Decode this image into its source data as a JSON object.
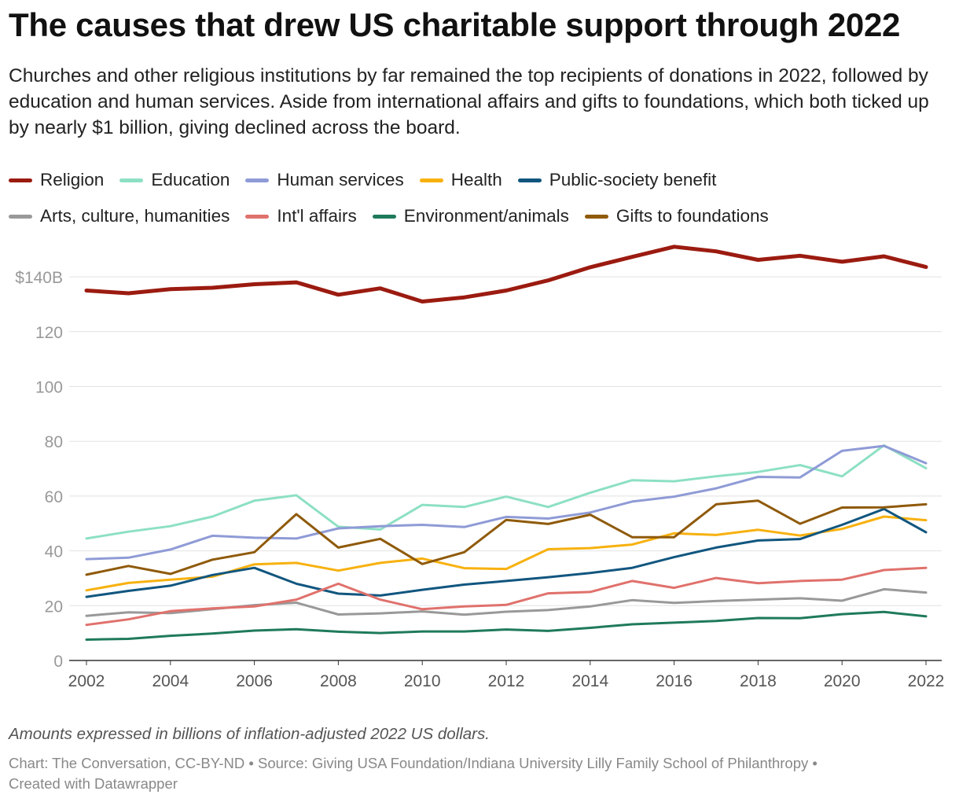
{
  "title": "The causes that drew US charitable support through 2022",
  "subtitle": "Churches and other religious institutions by far remained the top recipients of donations in 2022, followed by education and human services. Aside from international affairs and gifts to foundations, which both ticked up by nearly $1 billion, giving declined across the board.",
  "note": "Amounts expressed in billions of inflation-adjusted 2022 US dollars.",
  "footer": {
    "line1": "Chart: The Conversation, CC-BY-ND • Source: Giving USA Foundation/Indiana University Lilly Family School of Philanthropy •",
    "line2": "Created with Datawrapper"
  },
  "chart_data": {
    "type": "line",
    "x": [
      2002,
      2003,
      2004,
      2005,
      2006,
      2007,
      2008,
      2009,
      2010,
      2011,
      2012,
      2013,
      2014,
      2015,
      2016,
      2017,
      2018,
      2019,
      2020,
      2021,
      2022
    ],
    "xticks": [
      "2002",
      "2004",
      "2006",
      "2008",
      "2010",
      "2012",
      "2014",
      "2016",
      "2018",
      "2020",
      "2022"
    ],
    "yticks": [
      "0",
      "20",
      "40",
      "60",
      "80",
      "100",
      "120",
      "$140B"
    ],
    "ylim": [
      0,
      150
    ],
    "xlim": [
      2002,
      2022
    ],
    "grid": true,
    "legend_position": "top",
    "series": [
      {
        "name": "Religion",
        "color": "#9b1b10",
        "width": 5,
        "values": [
          135.0,
          134.0,
          135.5,
          136.0,
          137.3,
          138.0,
          133.5,
          135.8,
          131.0,
          132.5,
          135.0,
          138.7,
          143.5,
          147.3,
          151.0,
          149.3,
          146.2,
          147.7,
          145.5,
          147.5,
          143.6
        ]
      },
      {
        "name": "Education",
        "color": "#8de0c3",
        "width": 3,
        "values": [
          44.5,
          47.0,
          49.0,
          52.5,
          58.3,
          60.3,
          48.8,
          47.8,
          56.8,
          56.0,
          59.8,
          56.0,
          61.2,
          65.8,
          65.4,
          67.2,
          68.8,
          71.3,
          67.2,
          78.5,
          70.2
        ]
      },
      {
        "name": "Human services",
        "color": "#8f9bd6",
        "width": 3,
        "values": [
          37.0,
          37.5,
          40.5,
          45.5,
          44.8,
          44.5,
          48.2,
          49.0,
          49.5,
          48.7,
          52.4,
          51.8,
          54.0,
          58.0,
          59.8,
          62.8,
          67.0,
          66.8,
          76.5,
          78.3,
          72.0
        ]
      },
      {
        "name": "Health",
        "color": "#f7b10f",
        "width": 3,
        "values": [
          25.6,
          28.3,
          29.5,
          30.6,
          35.1,
          35.6,
          32.8,
          35.6,
          37.2,
          33.7,
          33.4,
          40.6,
          41.0,
          42.3,
          46.4,
          45.8,
          47.7,
          45.6,
          48.0,
          52.5,
          51.2
        ]
      },
      {
        "name": "Public-society benefit",
        "color": "#11567f",
        "width": 3,
        "values": [
          23.2,
          25.4,
          27.3,
          31.2,
          33.8,
          28.0,
          24.4,
          23.7,
          25.8,
          27.7,
          29.0,
          30.4,
          31.9,
          33.8,
          37.7,
          41.2,
          43.8,
          44.3,
          49.5,
          55.3,
          46.8
        ]
      },
      {
        "name": "Arts, culture, humanities",
        "color": "#999999",
        "width": 3,
        "values": [
          16.3,
          17.6,
          17.3,
          18.7,
          20.2,
          21.1,
          16.8,
          17.2,
          17.9,
          16.7,
          17.8,
          18.4,
          19.7,
          22.0,
          21.0,
          21.7,
          22.2,
          22.7,
          21.8,
          26.0,
          24.8
        ]
      },
      {
        "name": "Int'l affairs",
        "color": "#e0716c",
        "width": 3,
        "values": [
          13.0,
          15.0,
          18.0,
          19.0,
          19.7,
          22.2,
          28.0,
          22.2,
          18.7,
          19.7,
          20.3,
          24.5,
          25.0,
          29.0,
          26.5,
          30.1,
          28.2,
          29.0,
          29.5,
          33.0,
          33.8
        ]
      },
      {
        "name": "Environment/animals",
        "color": "#1f7a5c",
        "width": 3,
        "values": [
          7.6,
          7.9,
          9.0,
          9.8,
          10.9,
          11.4,
          10.5,
          10.0,
          10.6,
          10.6,
          11.3,
          10.8,
          11.9,
          13.2,
          13.8,
          14.4,
          15.5,
          15.4,
          16.9,
          17.7,
          16.1
        ]
      },
      {
        "name": "Gifts to foundations",
        "color": "#8f5a0a",
        "width": 3,
        "values": [
          31.3,
          34.5,
          31.6,
          36.8,
          39.5,
          53.4,
          41.2,
          44.4,
          35.2,
          39.5,
          51.3,
          49.8,
          53.2,
          45.0,
          45.0,
          57.0,
          58.3,
          49.9,
          55.8,
          55.9,
          57.0
        ]
      }
    ]
  }
}
